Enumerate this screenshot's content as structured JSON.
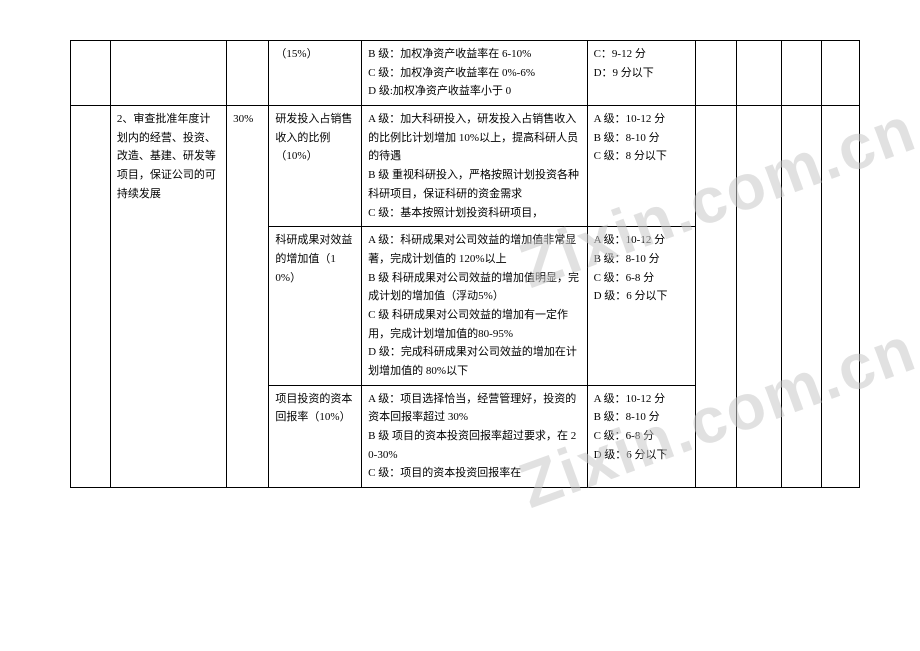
{
  "watermark_text": "Zixin.com.cn",
  "table": {
    "rows": [
      {
        "c0": "",
        "c1": "",
        "c2": "",
        "c3": "（15%）",
        "c4": "B 级：加权净资产收益率在 6-10%\nC 级：加权净资产收益率在 0%-6%\nD 级:加权净资产收益率小于 0",
        "c5": "C：9-12 分\nD：9 分以下",
        "c6": "",
        "c7": "",
        "c8": "",
        "c9": ""
      },
      {
        "c0": "",
        "c1": "2、审查批准年度计划内的经营、投资、改造、基建、研发等项目，保证公司的可持续发展",
        "c2": "30%",
        "c3": "研发投入占销售收入的比例\n（10%）",
        "c4": "A 级：加大科研投入，研发投入占销售收入的比例比计划增加 10%以上，提高科研人员的待遇\nB 级  重视科研投入，严格按照计划投资各种科研项目，保证科研的资金需求\nC 级：基本按照计划投资科研项目，",
        "c5": "A 级：10-12 分\nB 级：8-10 分\nC 级：8 分以下",
        "c6": "",
        "c7": "",
        "c8": "",
        "c9": ""
      },
      {
        "c0": "",
        "c1": "",
        "c2": "",
        "c3": "科研成果对效益的增加值（10%）",
        "c4": "A 级：科研成果对公司效益的增加值非常显著，完成计划值的 120%以上\nB 级  科研成果对公司效益的增加值明显，完成计划的增加值（浮动5%）\nC 级  科研成果对公司效益的增加有一定作用，完成计划增加值的80-95%\nD 级：完成科研成果对公司效益的增加在计划增加值的 80%以下",
        "c5": "A 级：10-12 分\nB 级：8-10 分\nC 级：6-8 分\nD 级：6 分以下",
        "c6": "",
        "c7": "",
        "c8": "",
        "c9": ""
      },
      {
        "c0": "",
        "c1": "",
        "c2": "",
        "c3": "项目投资的资本回报率（10%）",
        "c4": "A 级：项目选择恰当，经营管理好，投资的资本回报率超过 30%\nB 级  项目的资本投资回报率超过要求，在 20-30%\nC 级：项目的资本投资回报率在",
        "c5": "A 级：10-12 分\nB 级：8-10 分\nC 级：6-8 分\nD 级：6 分以下",
        "c6": "",
        "c7": "",
        "c8": "",
        "c9": ""
      }
    ]
  }
}
